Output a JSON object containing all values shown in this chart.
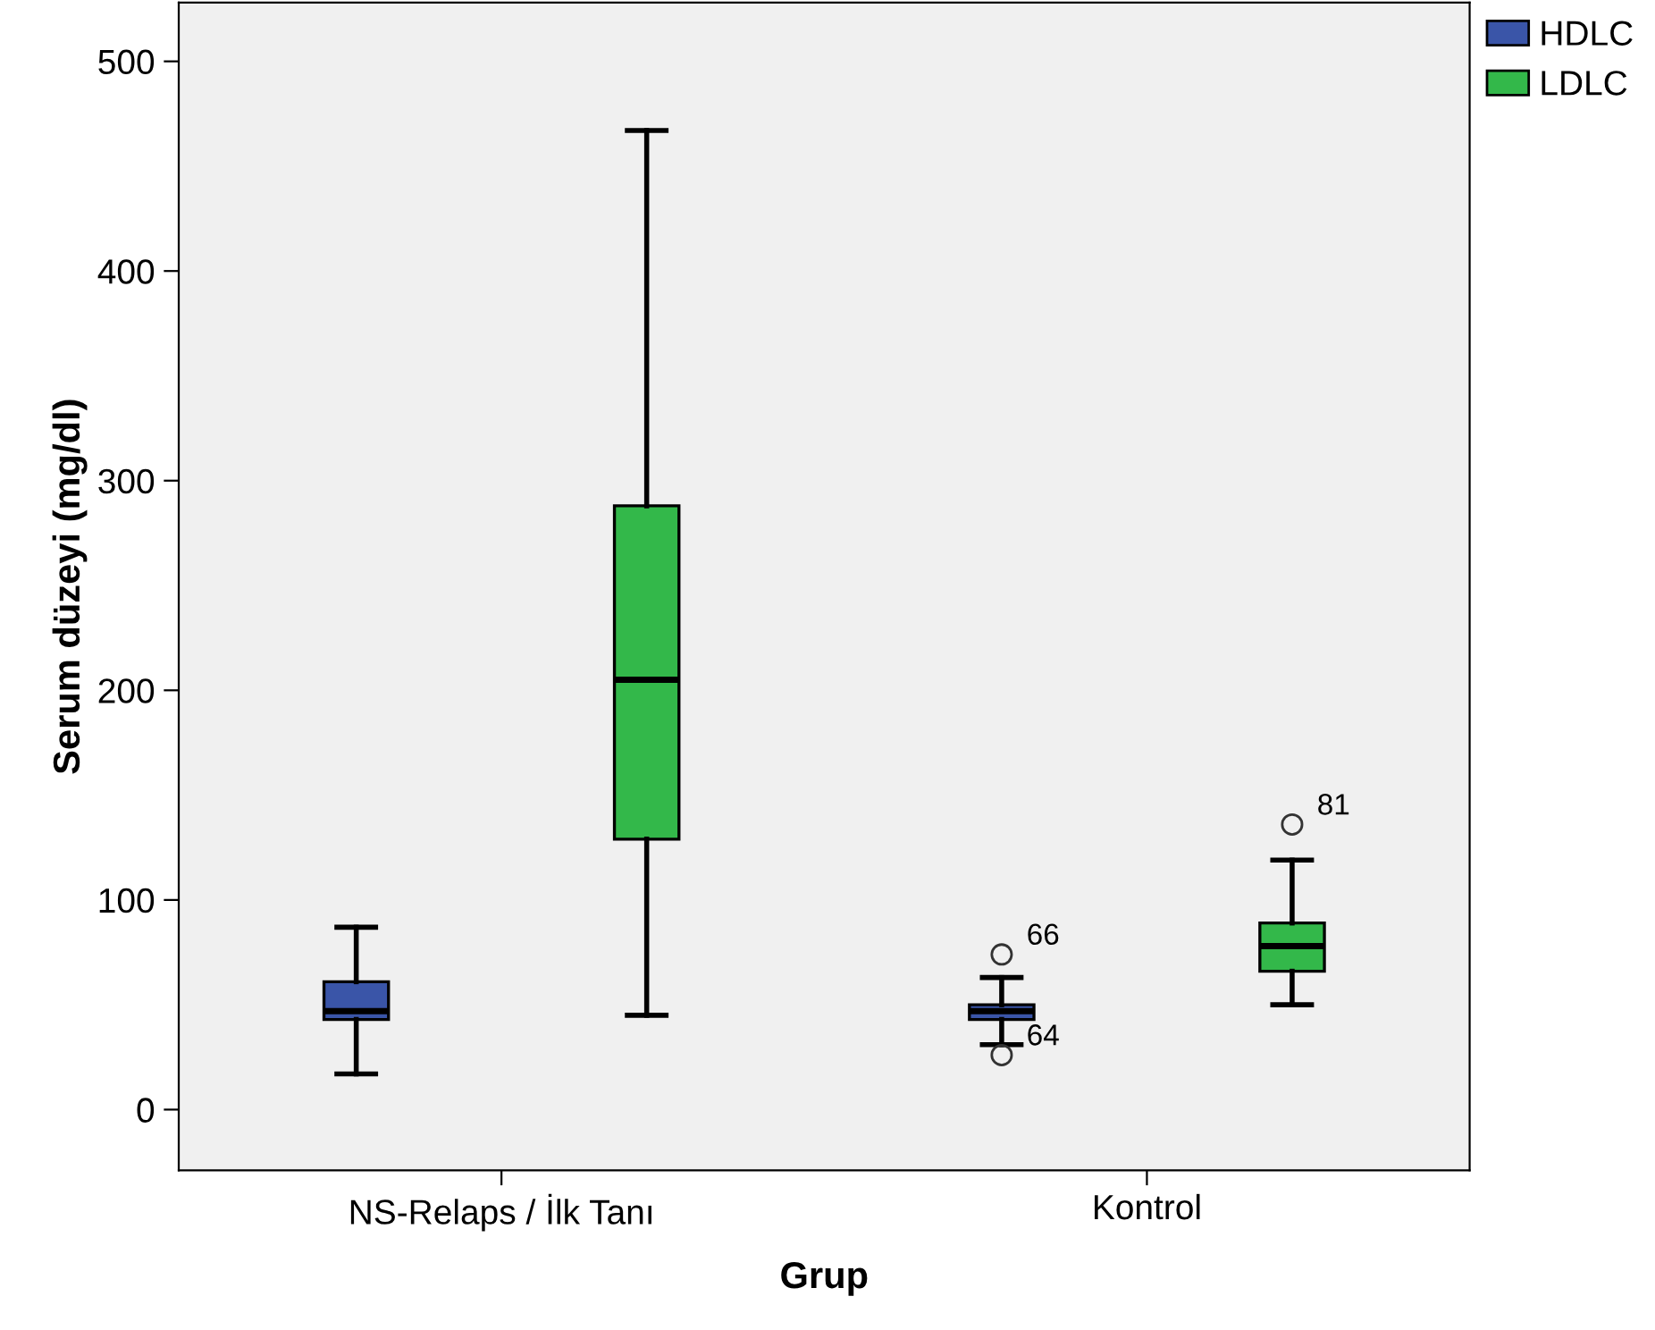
{
  "chart_data": {
    "type": "box",
    "xlabel": "Grup",
    "ylabel": "Serum düzeyi (mg/dl)",
    "categories": [
      "NS-Relaps / İlk Tanı",
      "Kontrol"
    ],
    "ylim": [
      -29,
      528
    ],
    "yticks": [
      0,
      100,
      200,
      300,
      400,
      500
    ],
    "grid": false,
    "legend": "top right",
    "series": [
      {
        "name": "HDLC",
        "color": "#3a55a8",
        "boxes": [
          {
            "low": 17,
            "q1": 43,
            "median": 47,
            "q3": 61,
            "high": 87
          },
          {
            "low": 31,
            "q1": 43,
            "median": 47,
            "q3": 50,
            "high": 63,
            "outliers": [
              74,
              26
            ]
          }
        ]
      },
      {
        "name": "LDLC",
        "color": "#33b84a",
        "boxes": [
          {
            "low": 45,
            "q1": 129,
            "median": 205,
            "q3": 288,
            "high": 467
          },
          {
            "low": 50,
            "q1": 66,
            "median": 78,
            "q3": 89,
            "high": 119,
            "outliers": [
              136
            ]
          }
        ]
      }
    ],
    "annotations": [
      "66",
      "64",
      "81"
    ]
  }
}
